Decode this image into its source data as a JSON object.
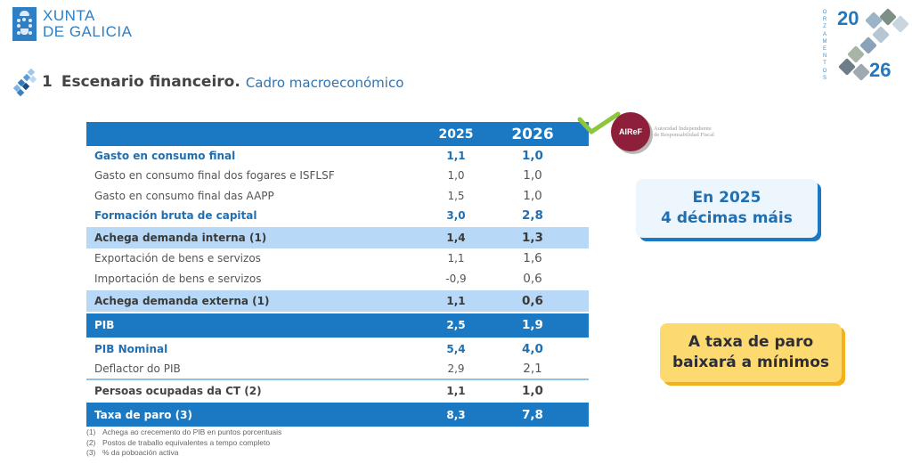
{
  "header": {
    "logo_line1": "XUNTA",
    "logo_line2": "DE GALICIA",
    "brand": {
      "vertical_text": "ORZAMENTOS",
      "year_top": "20",
      "year_bottom": "26"
    }
  },
  "title": {
    "number": "1",
    "main": "Escenario financeiro.",
    "sub": "Cadro macroeconómico"
  },
  "table": {
    "columns": [
      "",
      "2025",
      "2026"
    ],
    "rows": [
      {
        "label": "Gasto en consumo final",
        "v2025": "1,1",
        "v2026": "1,0",
        "style": "blue"
      },
      {
        "label": "Gasto en consumo final dos fogares e ISFLSF",
        "v2025": "1,0",
        "v2026": "1,0",
        "style": "plain"
      },
      {
        "label": "Gasto en consumo final das AAPP",
        "v2025": "1,5",
        "v2026": "1,0",
        "style": "plain"
      },
      {
        "label": "Formación bruta de capital",
        "v2025": "3,0",
        "v2026": "2,8",
        "style": "blue"
      },
      {
        "label": "Achega demanda interna (1)",
        "v2025": "1,4",
        "v2026": "1,3",
        "style": "light"
      },
      {
        "label": "Exportación de bens e servizos",
        "v2025": "1,1",
        "v2026": "1,6",
        "style": "plain"
      },
      {
        "label": "Importación de bens e servizos",
        "v2025": "-0,9",
        "v2026": "0,6",
        "style": "plain"
      },
      {
        "label": "Achega demanda externa (1)",
        "v2025": "1,1",
        "v2026": "0,6",
        "style": "light"
      },
      {
        "label": "PIB",
        "v2025": "2,5",
        "v2026": "1,9",
        "style": "dark"
      },
      {
        "label": "PIB Nominal",
        "v2025": "5,4",
        "v2026": "4,0",
        "style": "blue"
      },
      {
        "label": "Deflactor do PIB",
        "v2025": "2,9",
        "v2026": "2,1",
        "style": "plain"
      },
      {
        "label": "Persoas ocupadas da CT (2)",
        "v2025": "1,1",
        "v2026": "1,0",
        "style": "bold"
      },
      {
        "label": "Taxa de paro (3)",
        "v2025": "8,3",
        "v2026": "7,8",
        "style": "dark"
      }
    ]
  },
  "notes": [
    {
      "mark": "(1)",
      "text": "Achega ao crecemento do PIB en puntos porcentuais"
    },
    {
      "mark": "(2)",
      "text": "Postos de traballo equivalentes a tempo completo"
    },
    {
      "mark": "(3)",
      "text": "% da poboación activa"
    }
  ],
  "airef": {
    "badge": "AIReF",
    "line1": "Autoridad Independiente",
    "line2": "de Responsabilidad Fiscal"
  },
  "callouts": {
    "blue_line1": "En 2025",
    "blue_line2": "4 décimas máis",
    "yellow_line1": "A taxa de paro",
    "yellow_line2": "baixará a mínimos"
  },
  "colors": {
    "primary_blue": "#1b78c2",
    "light_blue_row": "#b7d8f6",
    "airef_red": "#8e1f3b",
    "check_green": "#8cc63f",
    "yellow_callout": "#fdda70"
  }
}
